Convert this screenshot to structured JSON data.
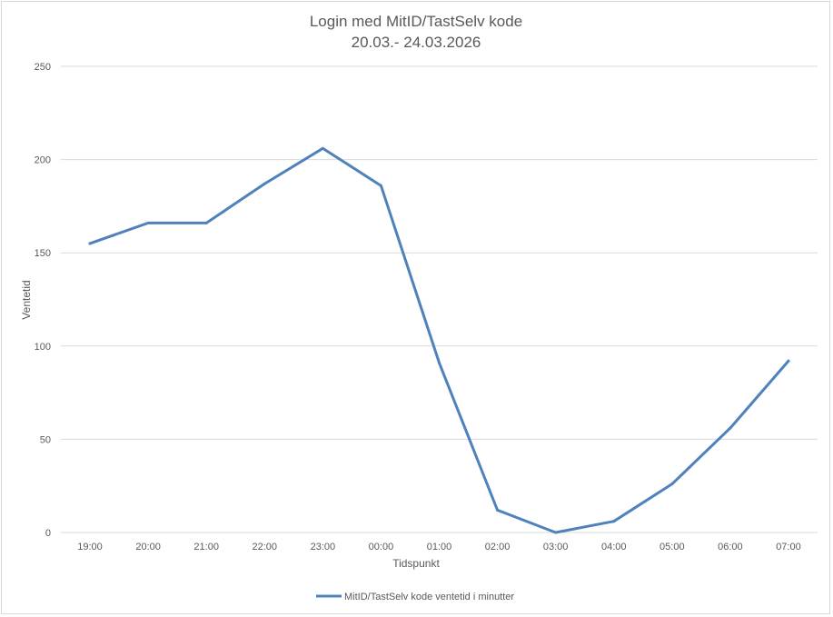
{
  "chart_data": {
    "type": "line",
    "title": "Login med MitID/TastSelv kode",
    "subtitle": "20.03.- 24.03.2026",
    "xlabel": "Tidspunkt",
    "ylabel": "Ventetid",
    "categories": [
      "19:00",
      "20:00",
      "21:00",
      "22:00",
      "23:00",
      "00:00",
      "01:00",
      "02:00",
      "03:00",
      "04:00",
      "05:00",
      "06:00",
      "07:00"
    ],
    "series": [
      {
        "name": "MitID/TastSelv kode ventetid i minutter",
        "values": [
          155,
          166,
          166,
          187,
          206,
          186,
          91,
          12,
          0,
          6,
          26,
          56,
          92
        ],
        "color": "#4f81bd"
      }
    ],
    "ylim": [
      0,
      250
    ],
    "yticks": [
      0,
      50,
      100,
      150,
      200,
      250
    ],
    "grid": true,
    "legend_position": "bottom"
  }
}
